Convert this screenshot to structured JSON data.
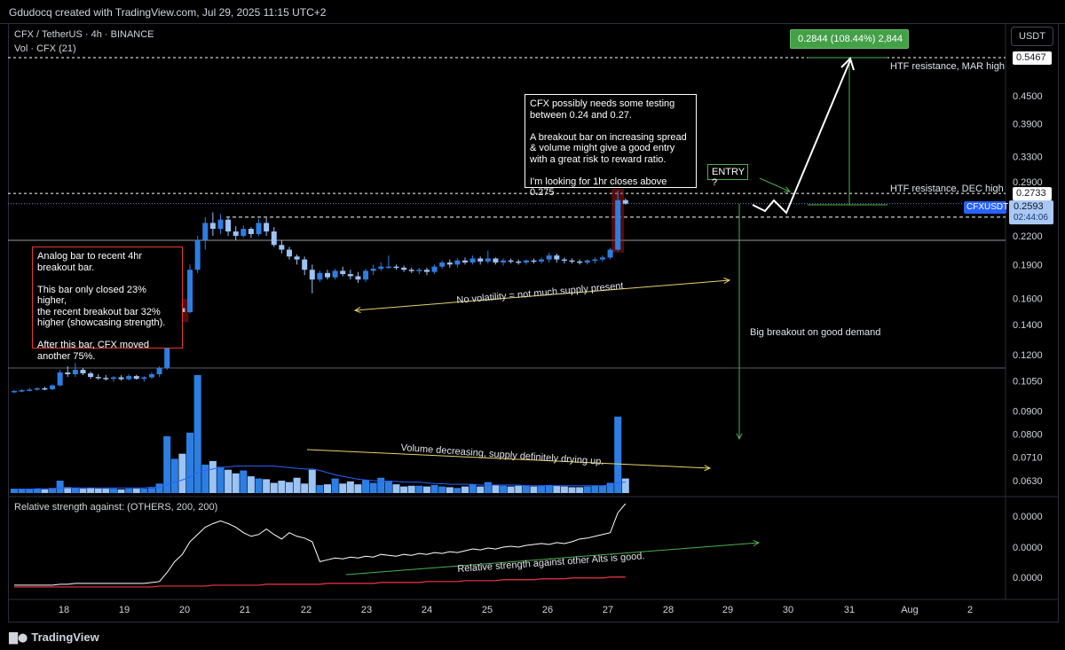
{
  "header": {
    "attribution": "Gdudocq created with TradingView.com, Jul 29, 2025 11:15 UTC+2"
  },
  "legend": {
    "symbol": "CFX / TetherUS · 4h · BINANCE",
    "volume": "Vol · CFX (21)",
    "rs": "Relative strength against: (OTHERS, 200, 200)"
  },
  "currency_button": "USDT",
  "measure_label": "0.2844 (108.44%) 2,844",
  "entry_label": "ENTRY ?",
  "annotations": {
    "analog_box": "Analog bar to recent 4hr\nbreakout bar.\n\nThis bar only closed 23% higher,\nthe recent breakout bar 32%\nhigher (showcasing strength).\n\nAfter this bar, CFX moved\nanother 75%.",
    "plan_box": "CFX possibly needs some testing\nbetween 0.24 and 0.27.\n\nA breakout bar on increasing spread\n& volume might give a good entry\nwith a great risk to reward ratio.\n\nI'm looking for 1hr closes above\n0.275",
    "htf_mar": "HTF resistance, MAR high",
    "htf_dec": "HTF resistance, DEC high",
    "no_volatility": "No volatility = not much supply present",
    "big_breakout": "Big breakout on good demand",
    "volume_decreasing": "Volume decreasing, supply definitely drying up.",
    "rs_good": "Relative strength against other Alts is good."
  },
  "price_badges": {
    "mar_high": "0.5467",
    "dec_high": "0.2733",
    "ticker": "CFXUSDT",
    "last": "0.2593",
    "countdown": "02:44:06"
  },
  "footer": {
    "brand": "TradingView"
  },
  "colors": {
    "up": "#2d7ee2",
    "down": "#9bc3f5",
    "bg": "#000000",
    "grid": "#2a2e39",
    "green": "#4caf50",
    "yellow": "#e8d36a",
    "red": "#f23645",
    "rs_line": "#ffffff"
  },
  "chart_data": {
    "type": "candlestick",
    "title": "CFX / TetherUS · 4h · BINANCE",
    "y_scale": "log",
    "ylim": [
      0.0605,
      0.5467
    ],
    "y_ticks": [
      "0.4500",
      "0.3900",
      "0.3300",
      "0.2900",
      "0.2200",
      "0.1900",
      "0.1600",
      "0.1400",
      "0.1200",
      "0.1050",
      "0.0900",
      "0.0800",
      "0.0710",
      "0.0630"
    ],
    "x_ticks": [
      "18",
      "19",
      "20",
      "21",
      "22",
      "23",
      "24",
      "25",
      "26",
      "27",
      "28",
      "29",
      "30",
      "31",
      "Aug",
      "2"
    ],
    "levels": [
      0.5467,
      0.2733,
      0.2593,
      0.215,
      0.112
    ],
    "candles": [
      [
        0.099,
        0.1002,
        0.0985,
        0.0996
      ],
      [
        0.0996,
        0.1006,
        0.099,
        0.1
      ],
      [
        0.1,
        0.1012,
        0.0995,
        0.1003
      ],
      [
        0.1003,
        0.1015,
        0.0998,
        0.101
      ],
      [
        0.101,
        0.1018,
        0.1,
        0.1005
      ],
      [
        0.1005,
        0.103,
        0.1,
        0.1025
      ],
      [
        0.1025,
        0.111,
        0.102,
        0.1095
      ],
      [
        0.1095,
        0.113,
        0.107,
        0.1085
      ],
      [
        0.1085,
        0.115,
        0.107,
        0.111
      ],
      [
        0.111,
        0.112,
        0.108,
        0.109
      ],
      [
        0.109,
        0.11,
        0.106,
        0.107
      ],
      [
        0.107,
        0.1085,
        0.1055,
        0.1065
      ],
      [
        0.1065,
        0.108,
        0.105,
        0.106
      ],
      [
        0.106,
        0.1075,
        0.1045,
        0.1068
      ],
      [
        0.1068,
        0.108,
        0.105,
        0.1058
      ],
      [
        0.1058,
        0.1085,
        0.105,
        0.1075
      ],
      [
        0.1075,
        0.1082,
        0.1055,
        0.106
      ],
      [
        0.106,
        0.1075,
        0.1045,
        0.1068
      ],
      [
        0.1068,
        0.1095,
        0.106,
        0.1085
      ],
      [
        0.1085,
        0.113,
        0.107,
        0.112
      ],
      [
        0.112,
        0.129,
        0.111,
        0.126
      ],
      [
        0.126,
        0.156,
        0.124,
        0.152
      ],
      [
        0.152,
        0.158,
        0.143,
        0.149
      ],
      [
        0.149,
        0.19,
        0.148,
        0.185
      ],
      [
        0.185,
        0.22,
        0.182,
        0.215
      ],
      [
        0.215,
        0.242,
        0.205,
        0.235
      ],
      [
        0.235,
        0.248,
        0.22,
        0.228
      ],
      [
        0.228,
        0.246,
        0.222,
        0.239
      ],
      [
        0.239,
        0.242,
        0.22,
        0.225
      ],
      [
        0.225,
        0.231,
        0.215,
        0.22
      ],
      [
        0.22,
        0.232,
        0.218,
        0.228
      ],
      [
        0.228,
        0.23,
        0.218,
        0.222
      ],
      [
        0.222,
        0.24,
        0.22,
        0.235
      ],
      [
        0.235,
        0.241,
        0.22,
        0.225
      ],
      [
        0.225,
        0.23,
        0.208,
        0.21
      ],
      [
        0.21,
        0.215,
        0.201,
        0.205
      ],
      [
        0.205,
        0.208,
        0.195,
        0.198
      ],
      [
        0.198,
        0.2,
        0.19,
        0.195
      ],
      [
        0.195,
        0.198,
        0.18,
        0.185
      ],
      [
        0.185,
        0.19,
        0.164,
        0.176
      ],
      [
        0.176,
        0.184,
        0.174,
        0.182
      ],
      [
        0.182,
        0.185,
        0.176,
        0.178
      ],
      [
        0.178,
        0.186,
        0.176,
        0.184
      ],
      [
        0.184,
        0.188,
        0.179,
        0.181
      ],
      [
        0.181,
        0.185,
        0.176,
        0.179
      ],
      [
        0.179,
        0.183,
        0.173,
        0.176
      ],
      [
        0.176,
        0.186,
        0.174,
        0.184
      ],
      [
        0.184,
        0.19,
        0.18,
        0.186
      ],
      [
        0.186,
        0.192,
        0.184,
        0.188
      ],
      [
        0.188,
        0.199,
        0.186,
        0.188
      ],
      [
        0.188,
        0.19,
        0.185,
        0.187
      ],
      [
        0.187,
        0.189,
        0.183,
        0.185
      ],
      [
        0.185,
        0.187,
        0.182,
        0.184
      ],
      [
        0.184,
        0.187,
        0.181,
        0.185
      ],
      [
        0.185,
        0.187,
        0.18,
        0.183
      ],
      [
        0.183,
        0.19,
        0.181,
        0.188
      ],
      [
        0.188,
        0.194,
        0.186,
        0.192
      ],
      [
        0.192,
        0.195,
        0.187,
        0.19
      ],
      [
        0.19,
        0.196,
        0.187,
        0.194
      ],
      [
        0.194,
        0.197,
        0.19,
        0.192
      ],
      [
        0.192,
        0.199,
        0.19,
        0.196
      ],
      [
        0.196,
        0.198,
        0.19,
        0.193
      ],
      [
        0.193,
        0.204,
        0.191,
        0.196
      ],
      [
        0.196,
        0.197,
        0.19,
        0.192
      ],
      [
        0.192,
        0.196,
        0.189,
        0.194
      ],
      [
        0.194,
        0.196,
        0.191,
        0.193
      ],
      [
        0.193,
        0.195,
        0.19,
        0.192
      ],
      [
        0.192,
        0.195,
        0.19,
        0.194
      ],
      [
        0.194,
        0.196,
        0.191,
        0.193
      ],
      [
        0.193,
        0.197,
        0.191,
        0.195
      ],
      [
        0.195,
        0.202,
        0.192,
        0.199
      ],
      [
        0.199,
        0.201,
        0.192,
        0.195
      ],
      [
        0.195,
        0.197,
        0.191,
        0.194
      ],
      [
        0.194,
        0.196,
        0.191,
        0.193
      ],
      [
        0.193,
        0.195,
        0.19,
        0.192
      ],
      [
        0.192,
        0.195,
        0.19,
        0.194
      ],
      [
        0.194,
        0.197,
        0.191,
        0.195
      ],
      [
        0.195,
        0.199,
        0.193,
        0.197
      ],
      [
        0.197,
        0.207,
        0.195,
        0.205
      ],
      [
        0.205,
        0.277,
        0.204,
        0.264
      ],
      [
        0.264,
        0.266,
        0.258,
        0.2593
      ]
    ],
    "volume": [
      6,
      6,
      6,
      6,
      5,
      7,
      17,
      8,
      7,
      6,
      7,
      6,
      6,
      6,
      5,
      6,
      6,
      6,
      7,
      13,
      78,
      47,
      54,
      83,
      162,
      39,
      44,
      36,
      32,
      27,
      31,
      23,
      20,
      19,
      14,
      17,
      15,
      21,
      13,
      32,
      11,
      12,
      20,
      13,
      16,
      12,
      18,
      14,
      21,
      17,
      12,
      9,
      10,
      10,
      9,
      11,
      9,
      8,
      7,
      9,
      12,
      9,
      15,
      11,
      10,
      9,
      10,
      10,
      9,
      10,
      11,
      10,
      9,
      8,
      8,
      9,
      10,
      10,
      14,
      105,
      20
    ],
    "volume_ma": [
      5,
      5,
      5,
      6,
      6,
      6,
      7,
      7,
      7,
      7,
      7,
      7,
      7,
      7,
      7,
      7,
      7,
      7,
      8,
      8,
      12,
      15,
      18,
      22,
      28,
      31,
      33,
      35,
      36,
      37,
      37,
      37,
      37,
      37,
      37,
      36,
      35,
      34,
      33,
      33,
      31,
      28,
      25,
      23,
      21,
      19,
      18,
      17,
      16,
      16,
      16,
      15,
      15,
      15,
      14,
      13,
      13,
      12,
      12,
      12,
      12,
      11,
      11,
      11,
      11,
      11,
      11,
      10,
      10,
      10,
      10,
      10,
      10,
      10,
      10,
      10,
      10,
      10,
      11,
      14,
      15
    ],
    "relative_strength": {
      "series": [
        {
          "name": "CFX vs OTHERS",
          "values": [
            4,
            4,
            4,
            4,
            4,
            4,
            5,
            5,
            6,
            6,
            6,
            6,
            6,
            6,
            6,
            6,
            6,
            6,
            7,
            8,
            18,
            30,
            38,
            52,
            60,
            68,
            72,
            75,
            72,
            68,
            62,
            58,
            60,
            66,
            60,
            55,
            62,
            58,
            56,
            52,
            30,
            32,
            34,
            33,
            35,
            34,
            36,
            35,
            38,
            37,
            36,
            38,
            37,
            39,
            38,
            40,
            39,
            41,
            40,
            42,
            44,
            43,
            45,
            44,
            46,
            47,
            46,
            48,
            49,
            50,
            49,
            51,
            50,
            52,
            55,
            56,
            58,
            60,
            62,
            84,
            94
          ]
        },
        {
          "name": "baseline",
          "values": [
            2,
            2,
            2,
            2,
            2,
            2,
            2,
            2,
            2,
            2,
            2,
            2,
            2,
            2,
            2,
            2,
            2,
            2,
            2,
            3,
            3,
            3,
            3,
            3,
            3,
            3,
            4,
            4,
            4,
            4,
            4,
            4,
            4,
            5,
            5,
            5,
            5,
            5,
            5,
            5,
            5,
            6,
            6,
            6,
            6,
            6,
            6,
            6,
            7,
            7,
            7,
            7,
            7,
            7,
            8,
            8,
            8,
            8,
            8,
            9,
            9,
            9,
            9,
            9,
            10,
            10,
            10,
            10,
            10,
            11,
            11,
            11,
            11,
            12,
            12,
            12,
            12,
            12,
            13,
            13,
            13
          ]
        }
      ],
      "y_ticks": [
        "0.0000",
        "0.0000",
        "0.0000"
      ]
    },
    "projection": {
      "target": 0.5467,
      "gain_pct": 108.44
    }
  }
}
